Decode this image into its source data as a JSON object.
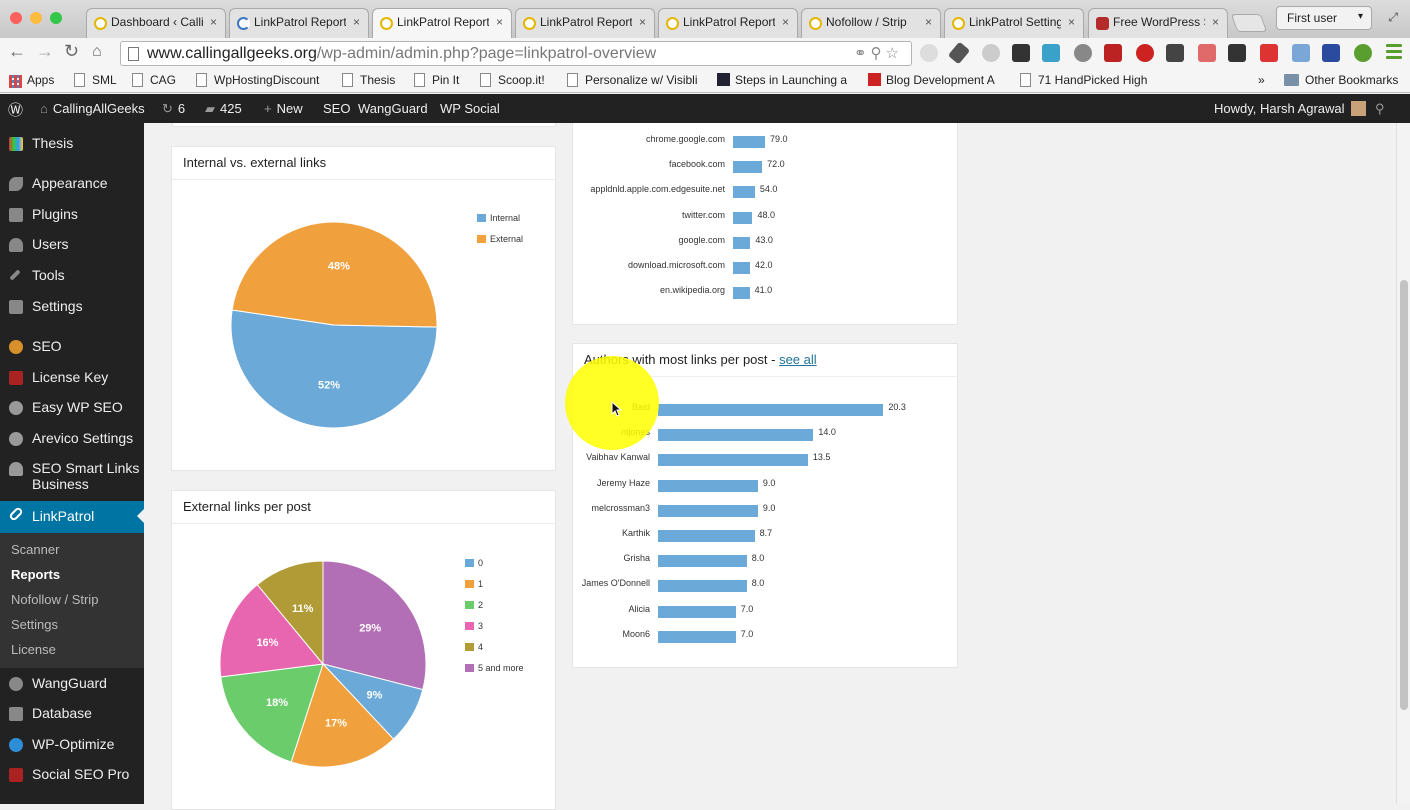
{
  "browser": {
    "tabs": [
      {
        "label": "Dashboard ‹ Calli",
        "icon": "site-favicon"
      },
      {
        "label": "LinkPatrol Report",
        "icon": "loading-spinner-icon"
      },
      {
        "label": "LinkPatrol Report",
        "icon": "site-favicon",
        "active": true
      },
      {
        "label": "LinkPatrol Report",
        "icon": "site-favicon"
      },
      {
        "label": "LinkPatrol Report",
        "icon": "site-favicon"
      },
      {
        "label": "Nofollow / Strip",
        "icon": "site-favicon"
      },
      {
        "label": "LinkPatrol Setting",
        "icon": "site-favicon"
      },
      {
        "label": "Free WordPress S",
        "icon": "wordpress-favicon"
      }
    ],
    "user_chip": "First user",
    "url_host": "www.callingallgeeks.org",
    "url_path": "/wp-admin/admin.php?page=linkpatrol-overview",
    "bookmarks": [
      "Apps",
      "SML",
      "CAG",
      "WpHostingDiscount",
      "Thesis",
      "Pin It",
      "Scoop.it!",
      "Personalize w/ Visibli",
      "Steps in Launching a",
      "Blog Development A",
      "71 HandPicked High"
    ],
    "other_bookmarks": "Other Bookmarks",
    "overflow": "»"
  },
  "adminbar": {
    "site": "CallingAllGeeks",
    "updates": "6",
    "comments": "425",
    "new": "New",
    "items": [
      "SEO",
      "WangGuard",
      "WP Social"
    ],
    "howdy": "Howdy, Harsh Agrawal"
  },
  "sidebar": {
    "items": [
      "Thesis",
      "Appearance",
      "Plugins",
      "Users",
      "Tools",
      "Settings",
      "SEO",
      "License Key",
      "Easy WP SEO",
      "Arevico Settings",
      "SEO Smart Links Business",
      "LinkPatrol",
      "WangGuard",
      "Database",
      "WP-Optimize",
      "Social SEO Pro"
    ],
    "submenu": [
      "Scanner",
      "Reports",
      "Nofollow / Strip",
      "Settings",
      "License"
    ],
    "current_submenu": "Reports"
  },
  "colors": {
    "blue": "#6aa9d8",
    "orange": "#f0a13e",
    "green": "#6bcc6b",
    "pink": "#e865b0",
    "olive": "#b09b36",
    "purple": "#b36fb6",
    "wp_blue": "#0074a2"
  },
  "panels": {
    "internal_external": {
      "title": "Internal vs. external links"
    },
    "external_per_post": {
      "title": "External links per post"
    },
    "authors": {
      "title": "Authors with most links per post - ",
      "see_all": "see all"
    }
  },
  "chart_data": [
    {
      "type": "pie",
      "title": "Internal vs. external links",
      "labels": [
        "Internal",
        "External"
      ],
      "values": [
        52,
        48
      ],
      "value_labels": [
        "52%",
        "48%"
      ],
      "colors": [
        "#6aa9d8",
        "#f0a13e"
      ],
      "legend": "right"
    },
    {
      "type": "pie",
      "title": "External links per post",
      "labels": [
        "0",
        "1",
        "2",
        "3",
        "4",
        "5 and more"
      ],
      "values": [
        9,
        17,
        18,
        16,
        11,
        29
      ],
      "value_labels": [
        "9%",
        "17%",
        "18%",
        "16%",
        "11%",
        "29%"
      ],
      "colors": [
        "#6aa9d8",
        "#f0a13e",
        "#6bcc6b",
        "#e865b0",
        "#b09b36",
        "#b36fb6"
      ],
      "legend": "right"
    },
    {
      "type": "bar",
      "orientation": "horizontal",
      "title": "",
      "categories": [
        "chrome.google.com",
        "facebook.com",
        "appldnld.apple.com.edgesuite.net",
        "twitter.com",
        "google.com",
        "download.microsoft.com",
        "en.wikipedia.org"
      ],
      "values": [
        79.0,
        72.0,
        54.0,
        48.0,
        43.0,
        42.0,
        41.0
      ],
      "value_labels": [
        "79.0",
        "72.0",
        "54.0",
        "48.0",
        "43.0",
        "42.0",
        "41.0"
      ],
      "color": "#6aa9d8"
    },
    {
      "type": "bar",
      "orientation": "horizontal",
      "title": "Authors with most links per post",
      "categories": [
        "Baid",
        "ntjones",
        "Vaibhav Kanwal",
        "Jeremy Haze",
        "melcrossman3",
        "Karthik",
        "Grisha",
        "James O'Donnell",
        "Alicia",
        "Moon6"
      ],
      "values": [
        20.3,
        14.0,
        13.5,
        9.0,
        9.0,
        8.7,
        8.0,
        8.0,
        7.0,
        7.0
      ],
      "value_labels": [
        "20.3",
        "14.0",
        "13.5",
        "9.0",
        "9.0",
        "8.7",
        "8.0",
        "8.0",
        "7.0",
        "7.0"
      ],
      "color": "#6aa9d8"
    }
  ]
}
